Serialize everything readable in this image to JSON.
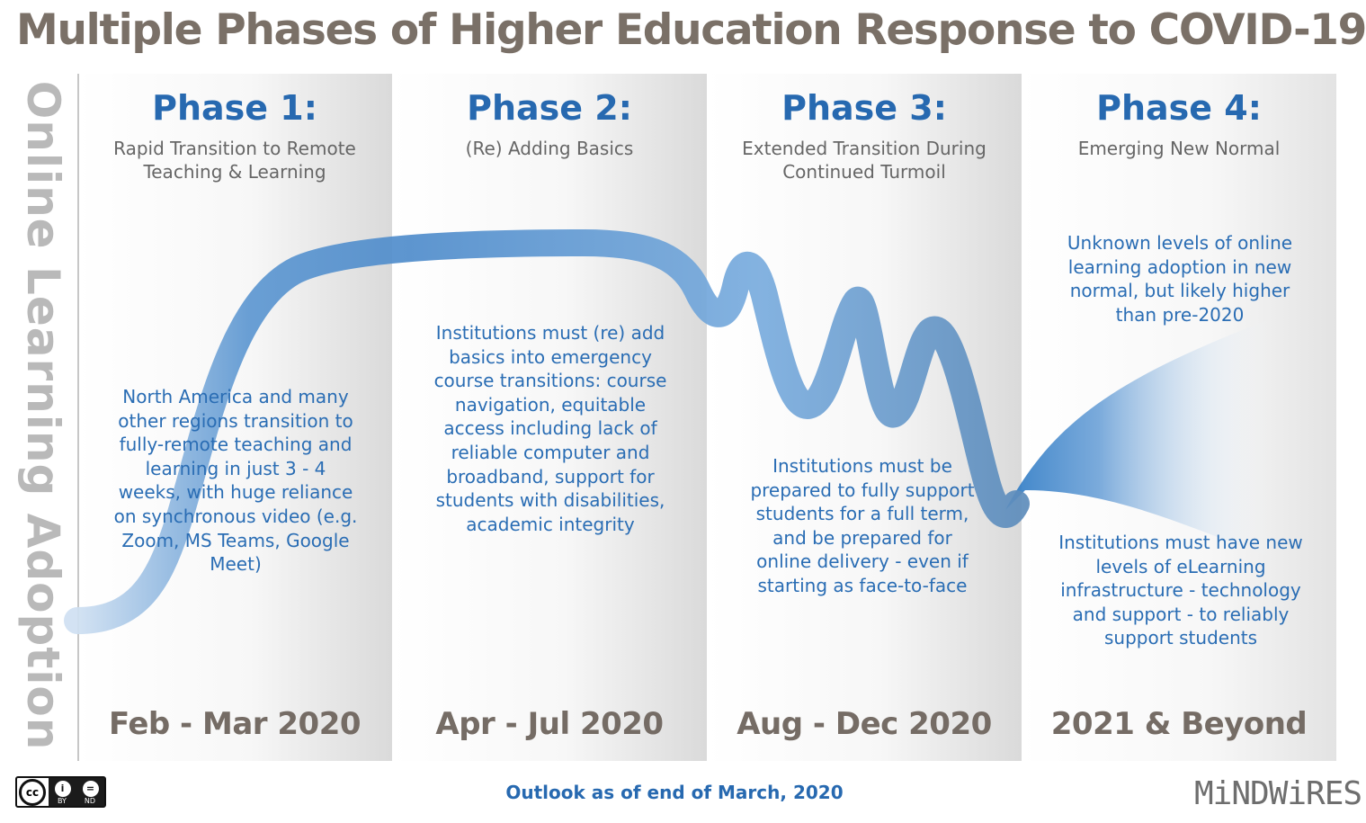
{
  "title": "Multiple Phases of Higher Education Response to COVID-19",
  "y_axis_label": "Online Learning Adoption",
  "phases": [
    {
      "heading": "Phase 1:",
      "subtitle": "Rapid Transition to Remote Teaching & Learning",
      "description": "North America and many other regions transition to fully-remote teaching and learning in just 3 - 4 weeks, with huge reliance on synchronous video (e.g. Zoom, MS Teams, Google Meet)",
      "dates": "Feb - Mar 2020"
    },
    {
      "heading": "Phase 2:",
      "subtitle": "(Re) Adding Basics",
      "description": "Institutions must (re) add basics into emergency course transitions: course navigation, equitable access including lack of reliable computer and broadband, support for students with disabilities, academic integrity",
      "dates": "Apr - Jul 2020"
    },
    {
      "heading": "Phase 3:",
      "subtitle": "Extended Transition During Continued Turmoil",
      "description": "Institutions must be prepared to fully support students for a full term, and be prepared for online delivery - even if starting as face-to-face",
      "dates": "Aug - Dec 2020"
    },
    {
      "heading": "Phase 4:",
      "subtitle": "Emerging New Normal",
      "description_top": "Unknown levels of online learning adoption in new normal, but likely higher than pre-2020",
      "description": "Institutions must have new levels of eLearning infrastructure - technology and support - to reliably support students",
      "dates": "2021 & Beyond"
    }
  ],
  "footer_note": "Outlook as of end of March, 2020",
  "license": {
    "cc": "cc",
    "by": "BY",
    "nd": "ND",
    "by_icon": "i",
    "nd_icon": "="
  },
  "logo_text": "MiNDWiRES",
  "colors": {
    "title": "#7a7067",
    "accent_blue": "#2769b0",
    "curve_blue": "#4f8ccb",
    "axis_gray": "#b9b9b9"
  }
}
